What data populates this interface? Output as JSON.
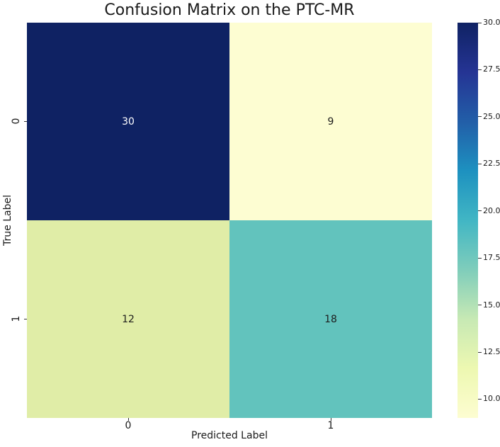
{
  "chart_data": {
    "type": "heatmap",
    "title": "Confusion Matrix on the PTC-MR",
    "xlabel": "Predicted Label",
    "ylabel": "True Label",
    "x_ticklabels": [
      "0",
      "1"
    ],
    "y_ticklabels": [
      "0",
      "1"
    ],
    "matrix": [
      [
        30,
        9
      ],
      [
        12,
        18
      ]
    ],
    "vmin": 9,
    "vmax": 30,
    "colormap": "YlGnBu",
    "cell_colors": [
      [
        "#0f2263",
        "#fdfdd2"
      ],
      [
        "#e0eda7",
        "#62c3bd"
      ]
    ],
    "cell_text_colors": [
      [
        "#ffffff",
        "#1c1c1c"
      ],
      [
        "#1c1c1c",
        "#1c1c1c"
      ]
    ],
    "colorbar": {
      "tick_labels": [
        "30.0",
        "27.5",
        "25.0",
        "22.5",
        "20.0",
        "17.5",
        "15.0",
        "12.5",
        "10.0"
      ],
      "tick_values": [
        30,
        27.5,
        25,
        22.5,
        20,
        17.5,
        15,
        12.5,
        10
      ],
      "gradient": [
        {
          "pos": 0.0,
          "color": "#fdfdd1"
        },
        {
          "pos": 0.125,
          "color": "#edf8b1"
        },
        {
          "pos": 0.25,
          "color": "#c7e9b4"
        },
        {
          "pos": 0.375,
          "color": "#7fcdbb"
        },
        {
          "pos": 0.5,
          "color": "#41b6c4"
        },
        {
          "pos": 0.625,
          "color": "#1d91c0"
        },
        {
          "pos": 0.75,
          "color": "#225ea8"
        },
        {
          "pos": 0.875,
          "color": "#253494"
        },
        {
          "pos": 1.0,
          "color": "#0f2263"
        }
      ]
    }
  }
}
